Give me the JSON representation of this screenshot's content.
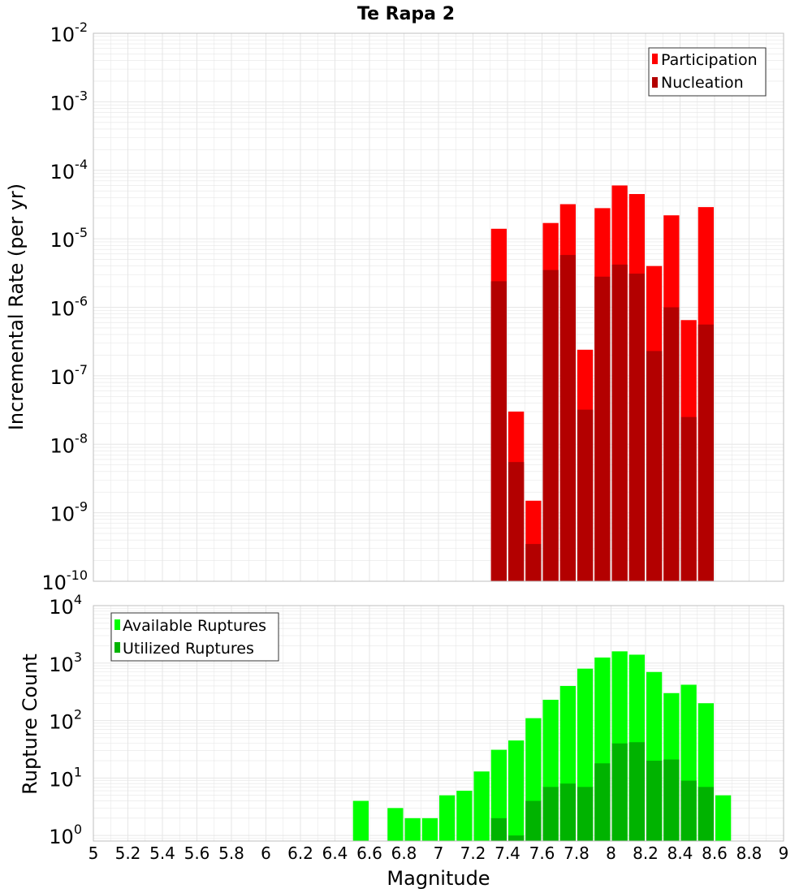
{
  "title": "Te Rapa 2",
  "colors": {
    "participation": "#ff0000",
    "nucleation": "#b30000",
    "available": "#00ff00",
    "utilized": "#00b300",
    "grid": "#e6e6e6",
    "frame": "#bfbfbf"
  },
  "chart_data": [
    {
      "type": "bar",
      "panel": "top",
      "ylabel": "Incremental Rate (per yr)",
      "yscale": "log",
      "ylim": [
        1e-10,
        0.01
      ],
      "xlim": [
        5,
        9
      ],
      "grid": true,
      "legend_position": "top-right",
      "y_tick_exponents": [
        "-2",
        "-3",
        "-4",
        "-5",
        "-6",
        "-7",
        "-8",
        "-9",
        "-10"
      ],
      "x": [
        7.35,
        7.45,
        7.55,
        7.65,
        7.75,
        7.85,
        7.95,
        8.05,
        8.15,
        8.25,
        8.35,
        8.45,
        8.55
      ],
      "series": [
        {
          "name": "Participation",
          "color_key": "participation",
          "values": [
            1.4e-05,
            3e-08,
            1.5e-09,
            1.7e-05,
            3.2e-05,
            2.4e-07,
            2.8e-05,
            6e-05,
            4.5e-05,
            4e-06,
            2.2e-05,
            6.5e-07,
            2.9e-05
          ]
        },
        {
          "name": "Nucleation",
          "color_key": "nucleation",
          "values": [
            2.4e-06,
            5.5e-09,
            3.5e-10,
            3.5e-06,
            5.8e-06,
            3.2e-08,
            2.8e-06,
            4.2e-06,
            3.1e-06,
            2.3e-07,
            1e-06,
            2.5e-08,
            5.6e-07
          ]
        }
      ]
    },
    {
      "type": "bar",
      "panel": "bottom",
      "xlabel": "Magnitude",
      "ylabel": "Rupture Count",
      "yscale": "log",
      "ylim": [
        0.8,
        10000
      ],
      "xlim": [
        5,
        9
      ],
      "grid": true,
      "legend_position": "top-left",
      "y_ticks": [
        {
          "value": 1,
          "exp": "0"
        },
        {
          "value": 10,
          "exp": "1"
        },
        {
          "value": 100,
          "exp": "2"
        },
        {
          "value": 1000,
          "exp": "3"
        },
        {
          "value": 10000,
          "exp": "4"
        }
      ],
      "x_tick_labels": [
        "5",
        "5.2",
        "5.4",
        "5.6",
        "5.8",
        "6",
        "6.2",
        "6.4",
        "6.6",
        "6.8",
        "7",
        "7.2",
        "7.4",
        "7.6",
        "7.8",
        "8",
        "8.2",
        "8.4",
        "8.6",
        "8.8",
        "9"
      ],
      "x": [
        6.55,
        6.75,
        6.85,
        6.95,
        7.05,
        7.15,
        7.25,
        7.35,
        7.45,
        7.55,
        7.65,
        7.75,
        7.85,
        7.95,
        8.05,
        8.15,
        8.25,
        8.35,
        8.45,
        8.55,
        8.65
      ],
      "series": [
        {
          "name": "Available Ruptures",
          "color_key": "available",
          "values": [
            4,
            3,
            2,
            2,
            5,
            6,
            13,
            31,
            45,
            110,
            230,
            400,
            800,
            1250,
            1600,
            1400,
            700,
            300,
            420,
            200,
            5
          ]
        },
        {
          "name": "Utilized Ruptures",
          "color_key": "utilized",
          "values": [
            0,
            0,
            0,
            0,
            0,
            0,
            0,
            2,
            1,
            4,
            7,
            8,
            7,
            18,
            40,
            42,
            20,
            21,
            9,
            7,
            0
          ]
        }
      ]
    }
  ]
}
